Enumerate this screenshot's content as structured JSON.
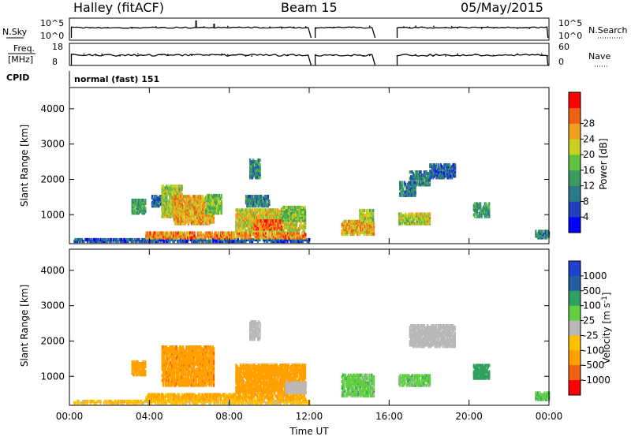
{
  "header": {
    "station": "Halley (fitACF)",
    "beam": "Beam 15",
    "date": "05/May/2015"
  },
  "top_panels": {
    "nsky_label": "N.Sky",
    "nsearch_label": "N.Search",
    "freq_label_1": "Freq.",
    "freq_label_2": "[MHz]",
    "nave_label": "Nave",
    "cpid_label": "CPID",
    "nsky_ticks": [
      "10^5",
      "10^0"
    ],
    "nsearch_ticks": [
      "10^5",
      "10^0"
    ],
    "freq_ticks": [
      "18",
      "8"
    ],
    "nave_ticks": [
      "60",
      "0"
    ],
    "cpid_text": "normal (fast) 151",
    "data_gaps_hours": [
      [
        12.1,
        12.3
      ],
      [
        15.3,
        16.4
      ]
    ]
  },
  "chart_data": [
    {
      "type": "heatmap",
      "name": "power-panel",
      "xlabel": "Time UT",
      "ylabel": "Slant Range [km]",
      "xlim": [
        0,
        24
      ],
      "ylim": [
        180,
        4600
      ],
      "yticks": [
        "1000",
        "2000",
        "3000",
        "4000"
      ],
      "colorbar": {
        "label": "Power [dB]",
        "ticks": [
          "4",
          "8",
          "12",
          "16",
          "20",
          "24",
          "28"
        ],
        "colors": [
          "#0000ff",
          "#2040c0",
          "#2a7a8a",
          "#3a9a60",
          "#60c040",
          "#c8d020",
          "#f0a020",
          "#f06010",
          "#ff0000"
        ]
      },
      "regions": [
        {
          "t0": 0.2,
          "t1": 12.0,
          "r0": 200,
          "r1": 260,
          "value": 8
        },
        {
          "t0": 3.8,
          "t1": 11.8,
          "r0": 300,
          "r1": 440,
          "value": 26
        },
        {
          "t0": 3.1,
          "t1": 3.8,
          "r0": 1000,
          "r1": 1400,
          "value": 14
        },
        {
          "t0": 4.1,
          "t1": 4.6,
          "r0": 1200,
          "r1": 1500,
          "value": 10
        },
        {
          "t0": 4.6,
          "t1": 5.6,
          "r0": 900,
          "r1": 1800,
          "value": 20
        },
        {
          "t0": 5.2,
          "t1": 7.2,
          "r0": 700,
          "r1": 1500,
          "value": 24
        },
        {
          "t0": 6.8,
          "t1": 7.6,
          "r0": 1000,
          "r1": 1500,
          "value": 18
        },
        {
          "t0": 8.3,
          "t1": 11.8,
          "r0": 500,
          "r1": 1100,
          "value": 22
        },
        {
          "t0": 9.2,
          "t1": 10.6,
          "r0": 550,
          "r1": 800,
          "value": 28
        },
        {
          "t0": 10.6,
          "t1": 11.8,
          "r0": 800,
          "r1": 1200,
          "value": 18
        },
        {
          "t0": 8.8,
          "t1": 10.0,
          "r0": 1200,
          "r1": 1500,
          "value": 12
        },
        {
          "t0": 13.6,
          "t1": 15.2,
          "r0": 400,
          "r1": 800,
          "value": 24
        },
        {
          "t0": 14.5,
          "t1": 15.2,
          "r0": 800,
          "r1": 1100,
          "value": 20
        },
        {
          "t0": 16.4,
          "t1": 18.0,
          "r0": 700,
          "r1": 1000,
          "value": 20
        },
        {
          "t0": 17.0,
          "t1": 18.0,
          "r0": 1800,
          "r1": 2200,
          "value": 12
        },
        {
          "t0": 18.0,
          "t1": 19.3,
          "r0": 2000,
          "r1": 2400,
          "value": 10
        },
        {
          "t0": 16.5,
          "t1": 17.3,
          "r0": 1500,
          "r1": 1900,
          "value": 12
        },
        {
          "t0": 20.2,
          "t1": 21.0,
          "r0": 900,
          "r1": 1300,
          "value": 14
        },
        {
          "t0": 23.3,
          "t1": 24.0,
          "r0": 300,
          "r1": 500,
          "value": 12
        },
        {
          "t0": 9.0,
          "t1": 9.5,
          "r0": 2000,
          "r1": 2500,
          "value": 12
        }
      ]
    },
    {
      "type": "heatmap",
      "name": "velocity-panel",
      "xlabel": "Time UT",
      "ylabel": "Slant Range [km]",
      "xlim": [
        0,
        24
      ],
      "ylim": [
        180,
        4600
      ],
      "xticks": [
        "00:00",
        "04:00",
        "08:00",
        "12:00",
        "16:00",
        "20:00",
        "00:00"
      ],
      "yticks": [
        "1000",
        "2000",
        "3000",
        "4000"
      ],
      "colorbar": {
        "label": "Velocity [m s^-1]",
        "ticks": [
          "1000",
          "500",
          "100",
          "25",
          "-25",
          "-100",
          "-500",
          "-1000"
        ],
        "colors": [
          "#2040d0",
          "#2060a0",
          "#30a060",
          "#60d040",
          "#b8b8b8",
          "#ffc000",
          "#ffa000",
          "#f06010",
          "#ff0000"
        ]
      },
      "regions": [
        {
          "t0": 0.2,
          "t1": 12.0,
          "r0": 200,
          "r1": 260,
          "value": -60
        },
        {
          "t0": 3.8,
          "t1": 11.8,
          "r0": 300,
          "r1": 440,
          "value": -120
        },
        {
          "t0": 3.1,
          "t1": 3.8,
          "r0": 1000,
          "r1": 1400,
          "value": -300
        },
        {
          "t0": 4.6,
          "t1": 7.2,
          "r0": 700,
          "r1": 1800,
          "value": -350
        },
        {
          "t0": 8.3,
          "t1": 11.8,
          "r0": 500,
          "r1": 1300,
          "value": -300
        },
        {
          "t0": 10.8,
          "t1": 11.8,
          "r0": 500,
          "r1": 800,
          "value": 0
        },
        {
          "t0": 13.6,
          "t1": 15.2,
          "r0": 400,
          "r1": 1000,
          "value": 60
        },
        {
          "t0": 16.4,
          "t1": 18.0,
          "r0": 700,
          "r1": 1000,
          "value": 60
        },
        {
          "t0": 17.0,
          "t1": 19.3,
          "r0": 1800,
          "r1": 2400,
          "value": 0
        },
        {
          "t0": 20.2,
          "t1": 21.0,
          "r0": 900,
          "r1": 1300,
          "value": 200
        },
        {
          "t0": 23.3,
          "t1": 24.0,
          "r0": 300,
          "r1": 500,
          "value": 80
        },
        {
          "t0": 9.0,
          "t1": 9.5,
          "r0": 2000,
          "r1": 2500,
          "value": 0
        }
      ]
    }
  ]
}
